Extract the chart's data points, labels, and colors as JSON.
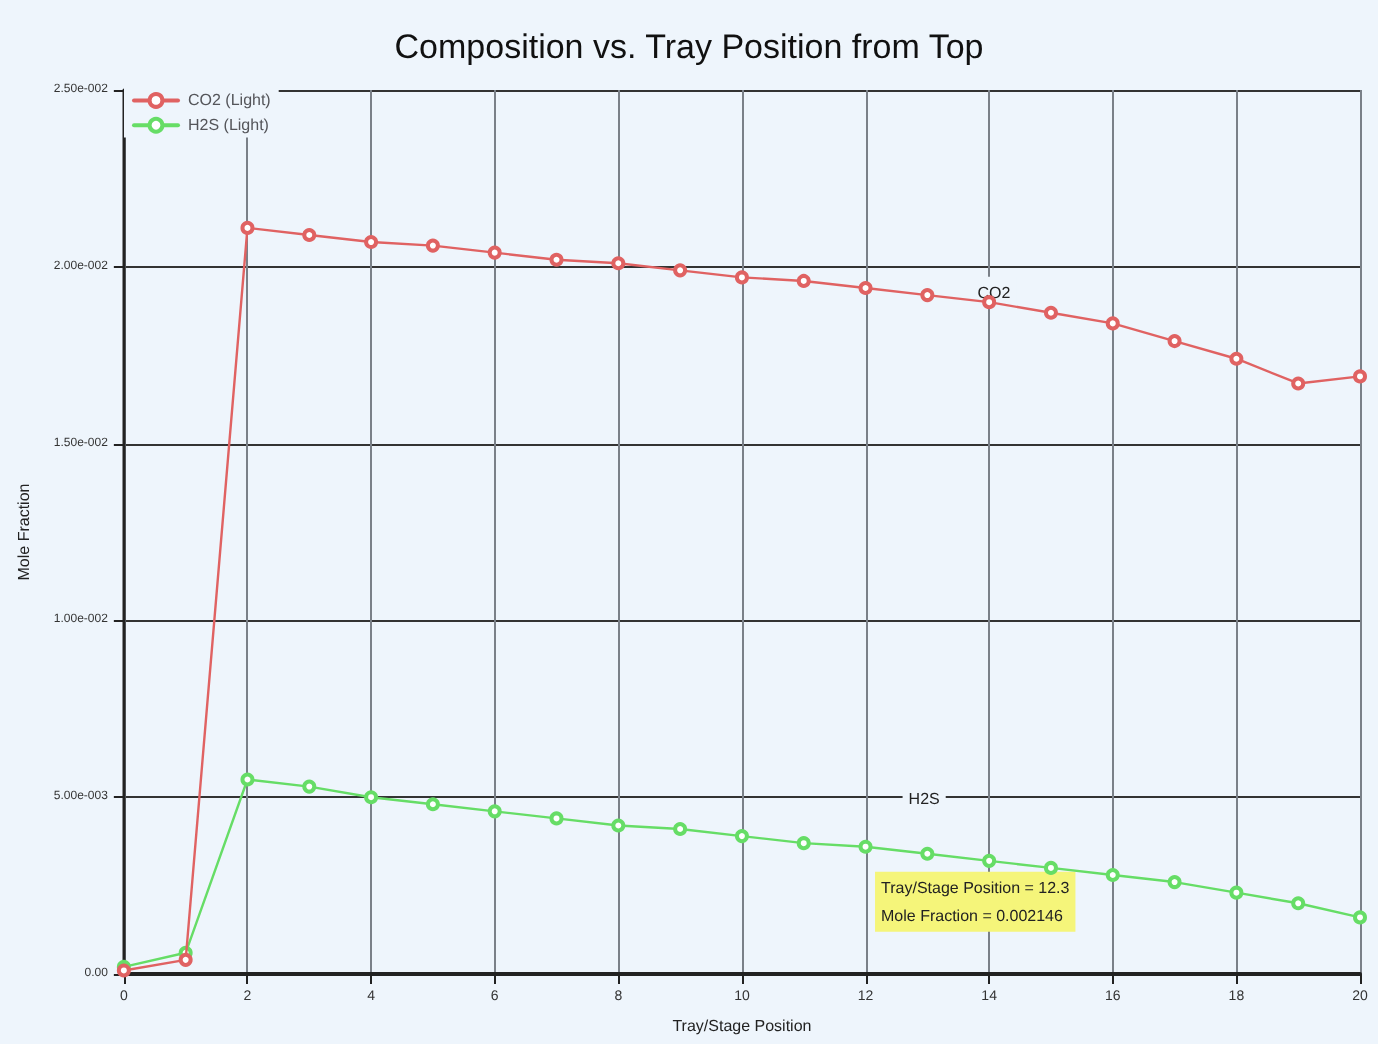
{
  "chart_data": {
    "type": "line",
    "title": "Composition vs. Tray Position from Top",
    "xlabel": "Tray/Stage Position",
    "ylabel": "Mole Fraction",
    "x": [
      0,
      1,
      2,
      3,
      4,
      5,
      6,
      7,
      8,
      9,
      10,
      11,
      12,
      13,
      14,
      15,
      16,
      17,
      18,
      19,
      20
    ],
    "series": [
      {
        "name": "CO2 (Light)",
        "color": "#e06262",
        "values": [
          0.0001,
          0.0004,
          0.0211,
          0.0209,
          0.0207,
          0.0206,
          0.0204,
          0.0202,
          0.0201,
          0.0199,
          0.0197,
          0.0196,
          0.0194,
          0.0192,
          0.019,
          0.0187,
          0.0184,
          0.0179,
          0.0174,
          0.0167,
          0.0169
        ]
      },
      {
        "name": "H2S (Light)",
        "color": "#66dd66",
        "values": [
          0.0002,
          0.0006,
          0.0055,
          0.0053,
          0.005,
          0.0048,
          0.0046,
          0.0044,
          0.0042,
          0.0041,
          0.0039,
          0.0037,
          0.0036,
          0.0034,
          0.0032,
          0.003,
          0.0028,
          0.0026,
          0.0023,
          0.002,
          0.0016
        ]
      }
    ],
    "xlim": [
      0,
      20
    ],
    "xticks": [
      0,
      2,
      4,
      6,
      8,
      10,
      12,
      14,
      16,
      18,
      20
    ],
    "ylim": [
      0,
      0.025
    ],
    "yticks": [
      {
        "value": 0,
        "label": "0.00"
      },
      {
        "value": 0.005,
        "label": "5.00e-003"
      },
      {
        "value": 0.01,
        "label": "1.00e-002"
      },
      {
        "value": 0.015,
        "label": "1.50e-002"
      },
      {
        "value": 0.02,
        "label": "2.00e-002"
      },
      {
        "value": 0.025,
        "label": "2.50e-002"
      }
    ],
    "annotations": [
      "CO2",
      "H2S",
      "Tray/Stage Position = 12.3\nMole Fraction = 0.002146"
    ],
    "grid": true,
    "legend": "top left",
    "marker": "circle",
    "line_style": "solid"
  }
}
